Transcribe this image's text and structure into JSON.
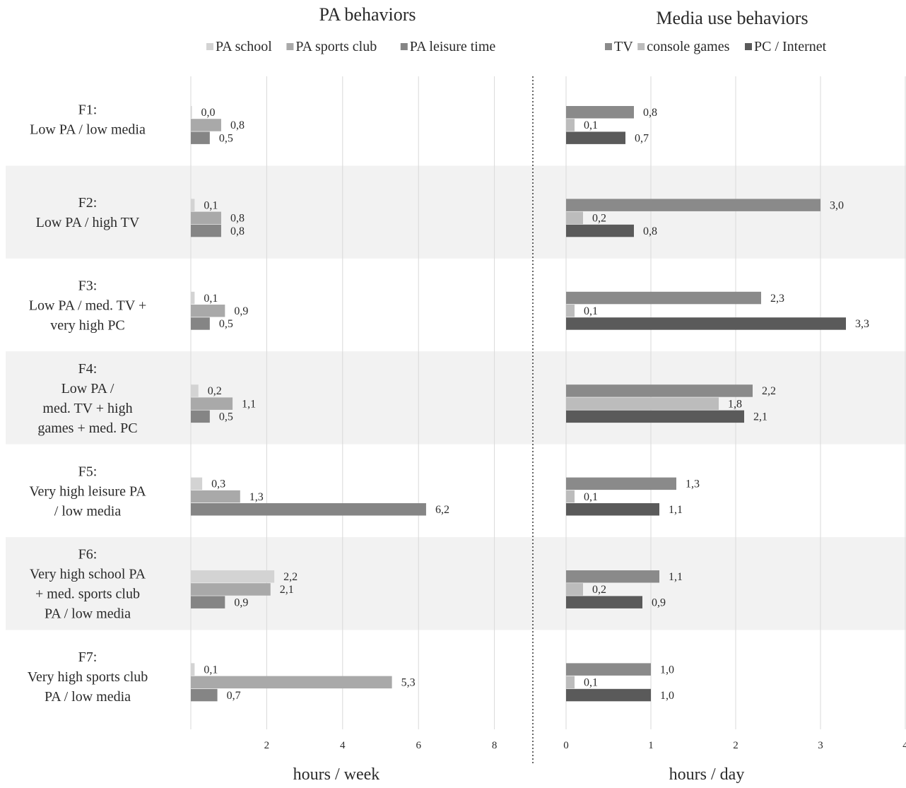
{
  "chart_data": [
    {
      "type": "bar",
      "orientation": "horizontal",
      "title": "PA behaviors",
      "xlabel": "hours / week",
      "categories": [
        "F1:\nLow PA / low media",
        "F2:\nLow PA / high TV",
        "F3:\nLow PA / med. TV +\nvery high PC",
        "F4:\nLow PA /\nmed. TV + high\ngames + med. PC",
        "F5:\nVery high leisure PA\n/ low media",
        "F6:\nVery high school PA\n+ med. sports club\nPA / low media",
        "F7:\nVery high sports club\nPA / low media"
      ],
      "series": [
        {
          "name": "PA school",
          "color": "#d3d3d3",
          "values": [
            0.0,
            0.1,
            0.1,
            0.2,
            0.3,
            2.2,
            0.1
          ],
          "labels": [
            "0,0",
            "0,1",
            "0,1",
            "0,2",
            "0,3",
            "2,2",
            "0,1"
          ]
        },
        {
          "name": "PA sports club",
          "color": "#a9a9a9",
          "values": [
            0.8,
            0.8,
            0.9,
            1.1,
            1.3,
            2.1,
            5.3
          ],
          "labels": [
            "0,8",
            "0,8",
            "0,9",
            "1,1",
            "1,3",
            "2,1",
            "5,3"
          ]
        },
        {
          "name": "PA leisure time",
          "color": "#858585",
          "values": [
            0.5,
            0.8,
            0.5,
            0.5,
            6.2,
            0.9,
            0.7
          ],
          "labels": [
            "0,5",
            "0,8",
            "0,5",
            "0,5",
            "6,2",
            "0,9",
            "0,7"
          ]
        }
      ],
      "xlim": [
        0,
        8
      ],
      "xticks": [
        "2",
        "4",
        "6",
        "8"
      ],
      "xtick_values": [
        2,
        4,
        6,
        8
      ],
      "grid": true,
      "legend_position": "top"
    },
    {
      "type": "bar",
      "orientation": "horizontal",
      "title": "Media use behaviors",
      "xlabel": "hours / day",
      "series": [
        {
          "name": "TV",
          "color": "#8a8a8a",
          "values": [
            0.8,
            3.0,
            2.3,
            2.2,
            1.3,
            1.1,
            1.0
          ],
          "labels": [
            "0,8",
            "3,0",
            "2,3",
            "2,2",
            "1,3",
            "1,1",
            "1,0"
          ]
        },
        {
          "name": "console games",
          "color": "#bcbcbc",
          "values": [
            0.1,
            0.2,
            0.1,
            1.8,
            0.1,
            0.2,
            0.1
          ],
          "labels": [
            "0,1",
            "0,2",
            "0,1",
            "1,8",
            "0,1",
            "0,2",
            "0,1"
          ]
        },
        {
          "name": "PC / Internet",
          "color": "#5a5a5a",
          "values": [
            0.7,
            0.8,
            3.3,
            2.1,
            1.1,
            0.9,
            1.0
          ],
          "labels": [
            "0,7",
            "0,8",
            "3,3",
            "2,1",
            "1,1",
            "0,9",
            "1,0"
          ]
        }
      ],
      "xlim": [
        0,
        4
      ],
      "xticks": [
        "0",
        "1",
        "2",
        "3",
        "4"
      ],
      "xtick_values": [
        0,
        1,
        2,
        3,
        4
      ],
      "grid": true,
      "legend_position": "top"
    }
  ],
  "colors": {
    "band": "#f2f2f2",
    "grid": "#d9d9d9",
    "divider": "#333333"
  }
}
